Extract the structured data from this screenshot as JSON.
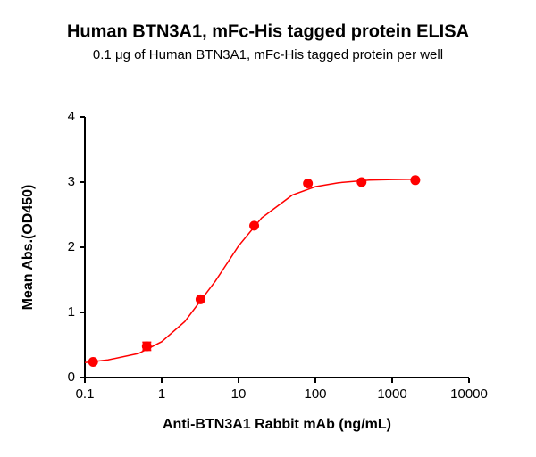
{
  "chart_data": {
    "type": "scatter",
    "title": "Human BTN3A1, mFc-His tagged protein ELISA",
    "subtitle": "0.1 μg of Human BTN3A1, mFc-His tagged protein per well",
    "x_label": "Anti-BTN3A1 Rabbit mAb (ng/mL)",
    "y_label": "Mean Abs.(OD450)",
    "x_scale": "log",
    "color": "#ff0000",
    "x": [
      0.128,
      0.64,
      3.2,
      16,
      80,
      400,
      2000
    ],
    "values": [
      0.24,
      0.48,
      1.2,
      2.33,
      2.98,
      3.0,
      3.03
    ],
    "errors": [
      null,
      0.06,
      null,
      null,
      null,
      null,
      null
    ],
    "fit_curve": {
      "x": [
        0.1,
        0.2,
        0.5,
        1,
        2,
        5,
        10,
        20,
        50,
        100,
        200,
        500,
        1000,
        2000
      ],
      "values": [
        0.23,
        0.27,
        0.37,
        0.55,
        0.86,
        1.48,
        2.02,
        2.45,
        2.8,
        2.93,
        2.99,
        3.03,
        3.04,
        3.045
      ]
    },
    "xlim": [
      0.1,
      10000
    ],
    "xticks": [
      0.1,
      1,
      10,
      100,
      1000,
      10000
    ],
    "ylim": [
      0,
      4
    ],
    "yticks": [
      0,
      1,
      2,
      3,
      4
    ]
  }
}
